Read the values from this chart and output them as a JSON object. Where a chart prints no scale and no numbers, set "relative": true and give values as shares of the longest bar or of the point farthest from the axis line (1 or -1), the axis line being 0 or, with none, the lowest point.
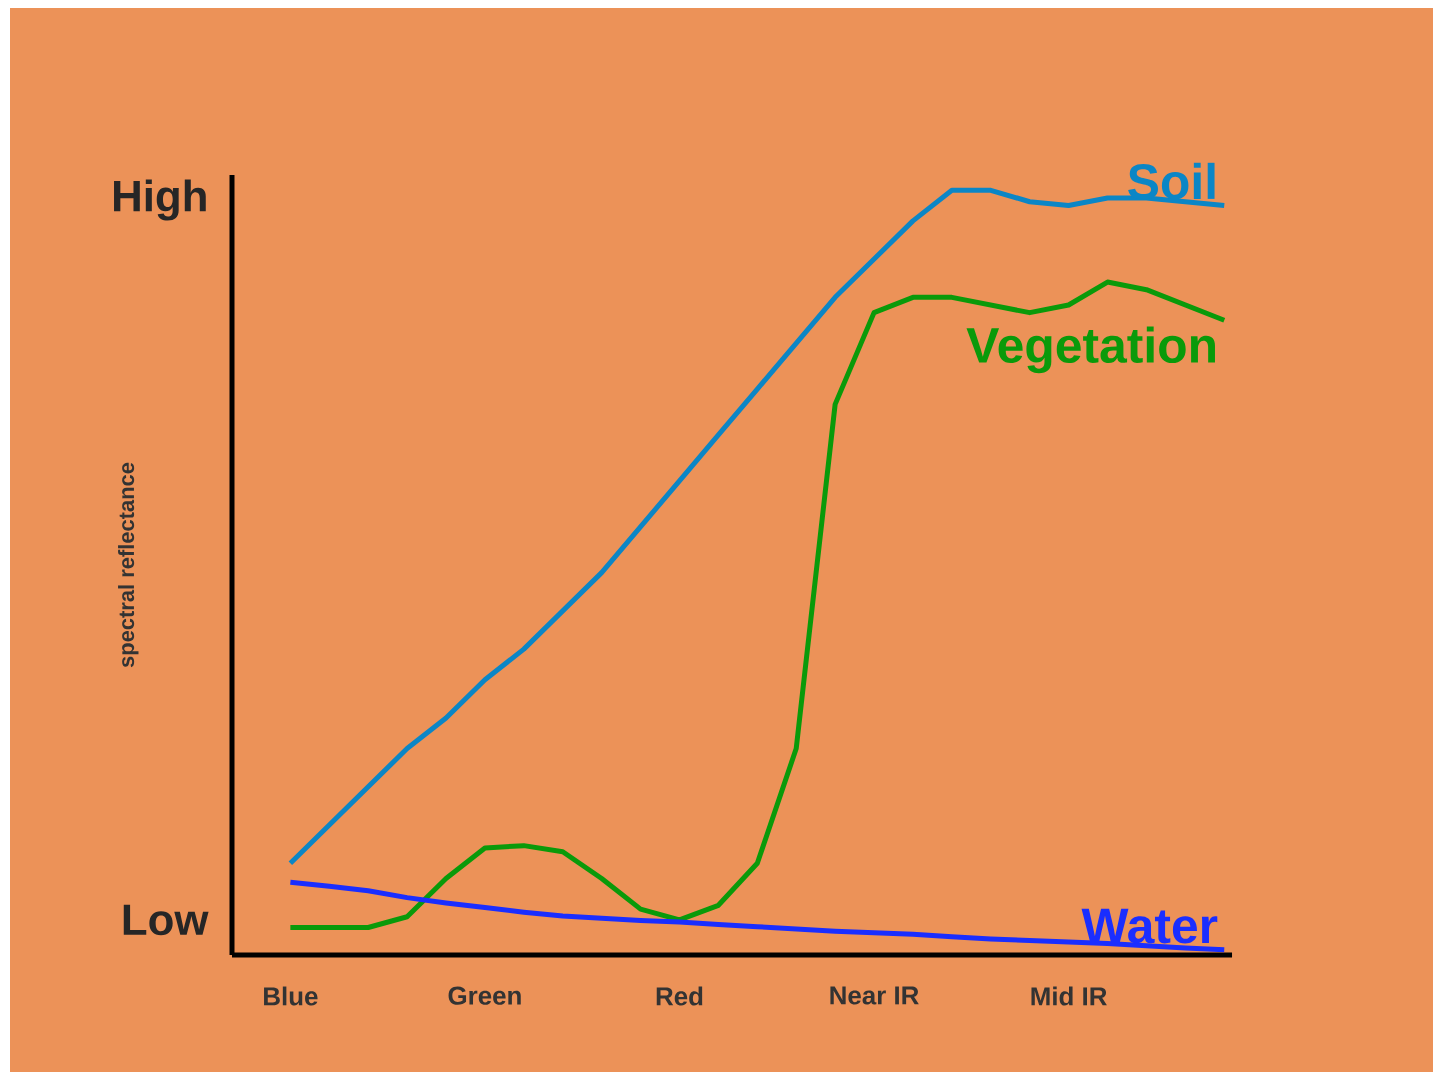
{
  "chart_data": {
    "type": "line",
    "relative": true,
    "ylabel": "spectral reflectance",
    "annotations": [
      "High",
      "Low"
    ],
    "categories": [
      "Blue",
      null,
      null,
      null,
      null,
      "Green",
      null,
      null,
      null,
      null,
      "Red",
      null,
      null,
      null,
      null,
      "Near IR",
      null,
      null,
      null,
      null,
      "Mid IR",
      null,
      null,
      null,
      null
    ],
    "series": [
      {
        "name": "Soil",
        "color": "#0b86c6",
        "values": [
          0.12,
          0.17,
          0.22,
          0.27,
          0.31,
          0.36,
          0.4,
          0.45,
          0.5,
          0.56,
          0.62,
          0.68,
          0.74,
          0.8,
          0.86,
          0.91,
          0.96,
          1.0,
          1.0,
          0.985,
          0.98,
          0.99,
          0.99,
          0.985,
          0.98
        ]
      },
      {
        "name": "Vegetation",
        "color": "#0a9a0a",
        "values": [
          0.036,
          0.036,
          0.036,
          0.05,
          0.1,
          0.14,
          0.143,
          0.135,
          0.1,
          0.06,
          0.046,
          0.065,
          0.12,
          0.27,
          0.72,
          0.84,
          0.86,
          0.86,
          0.85,
          0.84,
          0.85,
          0.88,
          0.87,
          0.85,
          0.83
        ]
      },
      {
        "name": "Water",
        "color": "#1a2eff",
        "values": [
          0.095,
          0.09,
          0.084,
          0.075,
          0.068,
          0.062,
          0.056,
          0.051,
          0.048,
          0.045,
          0.043,
          0.04,
          0.037,
          0.034,
          0.031,
          0.029,
          0.027,
          0.024,
          0.021,
          0.019,
          0.017,
          0.015,
          0.012,
          0.009,
          0.007
        ]
      }
    ]
  }
}
